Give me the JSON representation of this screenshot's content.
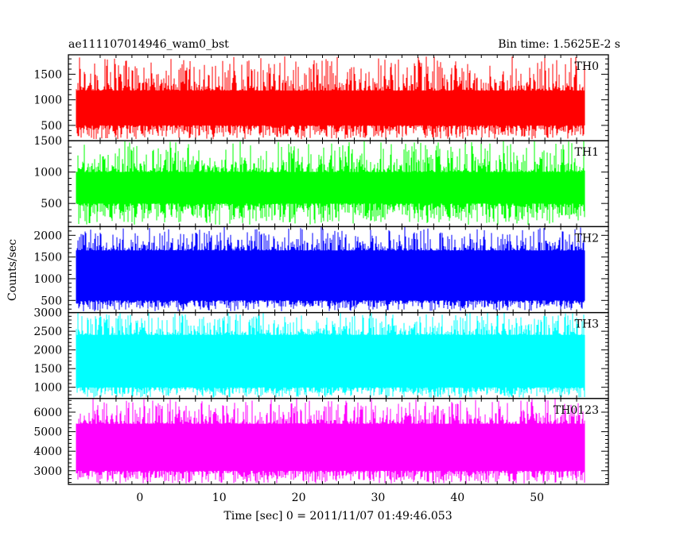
{
  "chart_data": {
    "type": "line",
    "title_left": "ae111107014946_wam0_bst",
    "title_right": "Bin time: 1.5625E-2 s",
    "xlabel": "Time [sec] 0 = 2011/11/07 01:49:46.053",
    "ylabel": "Counts/sec",
    "xlim": [
      -9,
      59
    ],
    "x_ticks": [
      0,
      10,
      20,
      30,
      40,
      50
    ],
    "x_data_range": [
      -8,
      56
    ],
    "bin_time_s": 0.015625,
    "grid": false,
    "panels": [
      {
        "name": "TH0",
        "color": "#ff0000",
        "ylim": [
          200,
          1880
        ],
        "yticks": [
          500,
          1000,
          1500
        ],
        "baseline": 500,
        "low": 230,
        "typical": 1180,
        "high": 1850
      },
      {
        "name": "TH1",
        "color": "#00ff00",
        "ylim": [
          130,
          1500
        ],
        "yticks": [
          500,
          1000,
          1500
        ],
        "baseline": 500,
        "low": 160,
        "typical": 1000,
        "high": 1500
      },
      {
        "name": "TH2",
        "color": "#0000ff",
        "ylim": [
          220,
          2200
        ],
        "yticks": [
          500,
          1000,
          1500,
          2000
        ],
        "baseline": 500,
        "low": 250,
        "typical": 1650,
        "high": 2200
      },
      {
        "name": "TH3",
        "color": "#00ffff",
        "ylim": [
          700,
          3000
        ],
        "yticks": [
          1000,
          1500,
          2000,
          2500,
          3000
        ],
        "baseline": 1000,
        "low": 720,
        "typical": 2400,
        "high": 3000
      },
      {
        "name": "TH0123",
        "color": "#ff00ff",
        "ylim": [
          2300,
          6700
        ],
        "yticks": [
          3000,
          4000,
          5000,
          6000
        ],
        "baseline": 3000,
        "low": 2350,
        "typical": 5400,
        "high": 6700
      }
    ]
  }
}
